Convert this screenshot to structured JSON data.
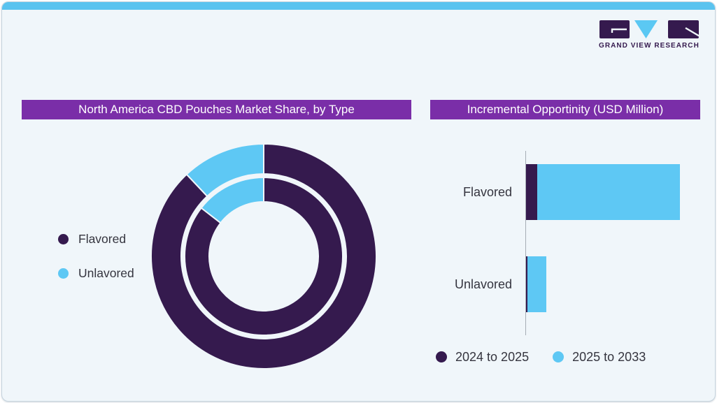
{
  "brand": {
    "name": "GRAND VIEW RESEARCH",
    "logo_purple": "#351a4e",
    "logo_blue": "#5bc8f3"
  },
  "colors": {
    "card_bg": "#f0f6fa",
    "card_border": "#c6d4de",
    "top_bar": "#5ac3ef",
    "title_bar_bg": "#7a2ea8",
    "title_text": "#ffffff",
    "dark_purple": "#351a4e",
    "light_blue": "#5ec8f4",
    "label_text": "#35353f",
    "axis_line": "#a6adb5"
  },
  "chart_data": [
    {
      "type": "pie",
      "variant": "double_ring_donut",
      "title": "North America CBD Pouches Market Share, by Type",
      "value_note": "no numeric labels shown; percentages estimated from arc angles",
      "colors": {
        "Flavored": "#351a4e",
        "Unlavored": "#5ec8f4"
      },
      "legend": [
        {
          "label": "Flavored",
          "color": "#351a4e"
        },
        {
          "label": "Unlavored",
          "color": "#5ec8f4"
        }
      ],
      "legend_position": "left",
      "rings": [
        {
          "name": "outer",
          "segments": [
            {
              "label": "Flavored",
              "value": 88
            },
            {
              "label": "Unlavored",
              "value": 12
            }
          ]
        },
        {
          "name": "inner",
          "segments": [
            {
              "label": "Flavored",
              "value": 85.5
            },
            {
              "label": "Unlavored",
              "value": 14.5
            }
          ]
        }
      ]
    },
    {
      "type": "bar",
      "orientation": "horizontal",
      "stacked": true,
      "title": "Incremental Opportinity (USD Million)",
      "value_note": "no numeric axis shown; values are relative bar lengths (px)",
      "categories": [
        "Flavored",
        "Unlavored"
      ],
      "series": [
        {
          "name": "2024 to 2025",
          "color": "#351a4e",
          "values": [
            16,
            2
          ]
        },
        {
          "name": "2025 to 2033",
          "color": "#5ec8f4",
          "values": [
            204,
            27
          ]
        }
      ],
      "legend": [
        {
          "label": "2024 to 2025",
          "color": "#351a4e"
        },
        {
          "label": "2025 to 2033",
          "color": "#5ec8f4"
        }
      ],
      "legend_position": "bottom",
      "grid": false
    }
  ]
}
